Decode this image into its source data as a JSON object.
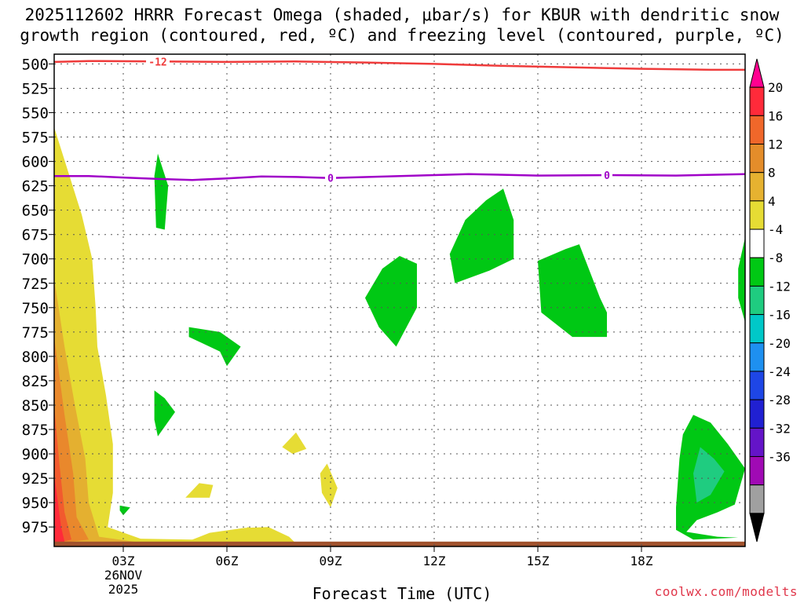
{
  "title": {
    "line1": "2025112602 HRRR Forecast Omega (shaded, μbar/s) for KBUR with dendritic snow",
    "line2": "growth region (contoured, red, ºC) and freezing level (contoured, purple, ºC)"
  },
  "credit": "coolwx.com/modelts",
  "chart_data": {
    "type": "time-height contour",
    "xlabel": "Forecast Time (UTC)",
    "ylabel": "Pressure (mb)",
    "x_range_hours": [
      1.0,
      21.0
    ],
    "x_ticks": [
      {
        "hour": 3,
        "label": "03Z"
      },
      {
        "hour": 6,
        "label": "06Z"
      },
      {
        "hour": 9,
        "label": "09Z"
      },
      {
        "hour": 12,
        "label": "12Z"
      },
      {
        "hour": 15,
        "label": "15Z"
      },
      {
        "hour": 18,
        "label": "18Z"
      }
    ],
    "date_label": {
      "line1": "26NOV",
      "line2": "2025"
    },
    "y_range_mb": [
      490,
      995
    ],
    "y_ticks": [
      500,
      525,
      550,
      575,
      600,
      625,
      650,
      675,
      700,
      725,
      750,
      775,
      800,
      825,
      850,
      875,
      900,
      925,
      950,
      975
    ],
    "grid": true,
    "colorbar": {
      "units": "microbar/s",
      "labels": [
        20,
        16,
        12,
        8,
        4,
        -4,
        -8,
        -12,
        -16,
        -20,
        -24,
        -28,
        -32,
        -36
      ],
      "colors": [
        "#ff0090",
        "#ff2a3a",
        "#f0672a",
        "#e48d2a",
        "#e6b230",
        "#e6dc34",
        "#ffffff",
        "#00c814",
        "#1fcc80",
        "#00c8c8",
        "#1e90f0",
        "#1e46e6",
        "#2020d2",
        "#6414c8",
        "#a00ab4",
        "#a0a0a0",
        "#000000"
      ]
    },
    "contours": [
      {
        "name": "dendritic -12C",
        "label": "-12",
        "color": "#ef3b3b",
        "points": [
          [
            1.0,
            498
          ],
          [
            2.0,
            497
          ],
          [
            4.0,
            497.5
          ],
          [
            6.0,
            498
          ],
          [
            8.0,
            497.5
          ],
          [
            10.0,
            498.5
          ],
          [
            12.0,
            500
          ],
          [
            14.0,
            502
          ],
          [
            16.0,
            503.5
          ],
          [
            18.0,
            505
          ],
          [
            20.0,
            506
          ],
          [
            21.0,
            506
          ]
        ],
        "label_at_hour": 4.0
      },
      {
        "name": "freezing level 0C",
        "label": "0",
        "color": "#a000c8",
        "points": [
          [
            1.0,
            615
          ],
          [
            2.0,
            615
          ],
          [
            3.0,
            616.5
          ],
          [
            4.0,
            618
          ],
          [
            5.0,
            619
          ],
          [
            6.0,
            617.5
          ],
          [
            7.0,
            615.5
          ],
          [
            8.0,
            616
          ],
          [
            9.0,
            617
          ],
          [
            11.0,
            615
          ],
          [
            13.0,
            613
          ],
          [
            15.0,
            614.5
          ],
          [
            17.0,
            614
          ],
          [
            19.0,
            614.5
          ],
          [
            21.0,
            613
          ]
        ],
        "label_at_hours": [
          9.0,
          17.0
        ]
      }
    ],
    "shaded_regions": [
      {
        "value": 4,
        "color": "#e6dc34",
        "points": [
          [
            1.0,
            565
          ],
          [
            1.4,
            610
          ],
          [
            1.8,
            655
          ],
          [
            2.1,
            700
          ],
          [
            2.2,
            750
          ],
          [
            2.25,
            790
          ],
          [
            2.5,
            840
          ],
          [
            2.7,
            890
          ],
          [
            2.7,
            940
          ],
          [
            2.55,
            975
          ],
          [
            3.5,
            987
          ],
          [
            5.0,
            988
          ],
          [
            5.5,
            981
          ],
          [
            6.5,
            976
          ],
          [
            7.2,
            975
          ],
          [
            7.8,
            985
          ],
          [
            8.0,
            992
          ],
          [
            1.0,
            992
          ]
        ]
      },
      {
        "value": 8,
        "color": "#e4b030",
        "points": [
          [
            1.0,
            720
          ],
          [
            1.3,
            790
          ],
          [
            1.6,
            850
          ],
          [
            1.9,
            905
          ],
          [
            2.0,
            950
          ],
          [
            2.3,
            985
          ],
          [
            3.5,
            991
          ],
          [
            1.0,
            992
          ]
        ]
      },
      {
        "value": 12,
        "color": "#e9882c",
        "points": [
          [
            1.0,
            780
          ],
          [
            1.3,
            860
          ],
          [
            1.55,
            920
          ],
          [
            1.65,
            965
          ],
          [
            2.0,
            988
          ],
          [
            1.0,
            992
          ]
        ]
      },
      {
        "value": 16,
        "color": "#f25a2e",
        "points": [
          [
            1.0,
            850
          ],
          [
            1.15,
            910
          ],
          [
            1.3,
            960
          ],
          [
            1.5,
            988
          ],
          [
            1.0,
            992
          ]
        ]
      },
      {
        "value": 20,
        "color": "#ff2a3a",
        "points": [
          [
            1.0,
            920
          ],
          [
            1.2,
            975
          ],
          [
            1.3,
            990
          ],
          [
            1.0,
            992
          ]
        ]
      },
      {
        "value": 4,
        "color": "#e6dc34",
        "points": [
          [
            6.6,
            975
          ],
          [
            7.3,
            982
          ],
          [
            7.9,
            989
          ],
          [
            6.2,
            990
          ]
        ]
      },
      {
        "value": 4,
        "color": "#e6dc34",
        "points": [
          [
            7.6,
            893
          ],
          [
            8.0,
            878
          ],
          [
            8.3,
            895
          ],
          [
            7.9,
            900
          ]
        ]
      },
      {
        "value": 4,
        "color": "#e6dc34",
        "points": [
          [
            4.8,
            945
          ],
          [
            5.2,
            930
          ],
          [
            5.6,
            932
          ],
          [
            5.5,
            945
          ]
        ]
      },
      {
        "value": 4,
        "color": "#e6dc34",
        "points": [
          [
            8.7,
            920
          ],
          [
            8.9,
            910
          ],
          [
            9.2,
            935
          ],
          [
            9.0,
            955
          ],
          [
            8.75,
            940
          ]
        ]
      },
      {
        "value": -4,
        "color": "#00c814",
        "points": [
          [
            4.0,
            592
          ],
          [
            4.3,
            625
          ],
          [
            4.2,
            670
          ],
          [
            3.95,
            668
          ],
          [
            3.9,
            615
          ]
        ]
      },
      {
        "value": -4,
        "color": "#00c814",
        "points": [
          [
            4.9,
            770
          ],
          [
            5.8,
            775
          ],
          [
            6.4,
            790
          ],
          [
            6.0,
            810
          ],
          [
            5.8,
            795
          ],
          [
            4.9,
            780
          ]
        ]
      },
      {
        "value": -4,
        "color": "#00c814",
        "points": [
          [
            3.9,
            835
          ],
          [
            4.2,
            843
          ],
          [
            4.5,
            857
          ],
          [
            4.0,
            882
          ],
          [
            3.9,
            865
          ]
        ]
      },
      {
        "value": -4,
        "color": "#00c814",
        "points": [
          [
            2.9,
            953
          ],
          [
            3.2,
            955
          ],
          [
            3.0,
            963
          ],
          [
            2.9,
            958
          ]
        ]
      },
      {
        "value": -4,
        "color": "#00c814",
        "points": [
          [
            10.0,
            740
          ],
          [
            10.5,
            710
          ],
          [
            11.0,
            697
          ],
          [
            11.5,
            705
          ],
          [
            11.5,
            750
          ],
          [
            10.9,
            790
          ],
          [
            10.4,
            770
          ]
        ]
      },
      {
        "value": -4,
        "color": "#00c814",
        "points": [
          [
            12.9,
            660
          ],
          [
            13.5,
            640
          ],
          [
            14.0,
            628
          ],
          [
            14.3,
            660
          ],
          [
            14.3,
            700
          ],
          [
            13.6,
            712
          ],
          [
            12.6,
            725
          ],
          [
            12.45,
            695
          ]
        ]
      },
      {
        "value": -4,
        "color": "#00c814",
        "points": [
          [
            15.0,
            702
          ],
          [
            15.8,
            690
          ],
          [
            16.2,
            685
          ],
          [
            16.8,
            740
          ],
          [
            17.0,
            755
          ],
          [
            17.0,
            780
          ],
          [
            16.0,
            780
          ],
          [
            15.1,
            755
          ]
        ]
      },
      {
        "value": -4,
        "color": "#00c814",
        "points": [
          [
            21.0,
            678
          ],
          [
            20.8,
            710
          ],
          [
            20.8,
            740
          ],
          [
            21.0,
            765
          ]
        ]
      },
      {
        "value": -4,
        "color": "#00c814",
        "points": [
          [
            19.2,
            880
          ],
          [
            19.5,
            860
          ],
          [
            20.0,
            868
          ],
          [
            20.5,
            890
          ],
          [
            21.0,
            915
          ],
          [
            20.7,
            952
          ],
          [
            20.2,
            960
          ],
          [
            19.6,
            968
          ],
          [
            19.3,
            980
          ],
          [
            20.2,
            985
          ],
          [
            20.8,
            986
          ],
          [
            19.5,
            988
          ],
          [
            19.0,
            978
          ],
          [
            19.0,
            955
          ],
          [
            19.1,
            905
          ]
        ]
      },
      {
        "value": -8,
        "color": "#1fcc80",
        "points": [
          [
            19.7,
            893
          ],
          [
            20.1,
            905
          ],
          [
            20.4,
            918
          ],
          [
            20.0,
            942
          ],
          [
            19.6,
            950
          ],
          [
            19.5,
            920
          ]
        ]
      }
    ],
    "surface_band": {
      "color": "#a0522d",
      "top_mb": 990
    }
  }
}
